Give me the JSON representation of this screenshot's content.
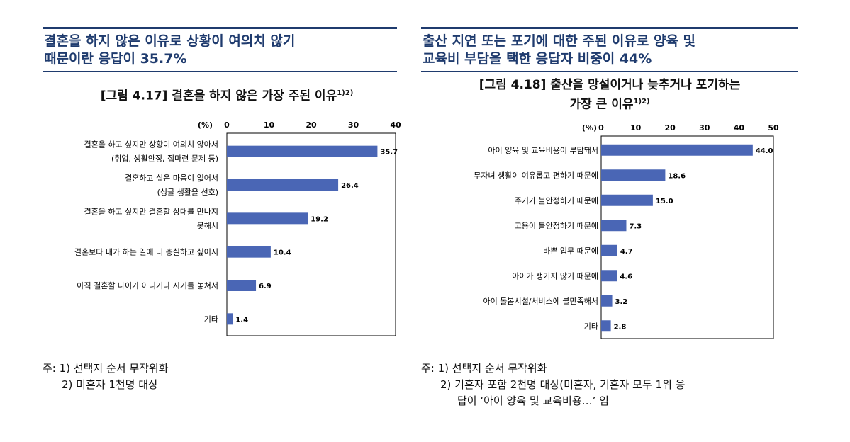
{
  "left": {
    "headline_line1": "결혼을 하지 않은 이유로 상황이 여의치 않기",
    "headline_line2": "때문이란 응답이 35.7%",
    "figure_title": "[그림 4.17] 결혼을 하지 않은 가장 주된 이유",
    "figure_title_sup": "1)2)",
    "notes": [
      "주: 1) 선택지 순서 무작위화",
      "2) 미혼자 1천명 대상"
    ]
  },
  "right": {
    "headline_line1": "출산 지연 또는 포기에 대한 주된 이유로 양육 및",
    "headline_line2": "교육비 부담을 택한 응답자 비중이 44%",
    "figure_title_line1": "[그림 4.18] 출산을 망설이거나 늦추거나 포기하는",
    "figure_title_line2": "가장 큰 이유",
    "figure_title_sup": "1)2)",
    "notes": [
      "주: 1) 선택지 순서 무작위화",
      "2) 기혼자 포함 2천명 대상(미혼자, 기혼자 모두 1위 응",
      "답이 ‘아이 양육 및 교육비용…’ 임"
    ]
  },
  "colors": {
    "bar": "#4a66b5",
    "title": "#1f3b6e"
  },
  "chart_data": [
    {
      "type": "bar",
      "orientation": "horizontal",
      "title": "[그림 4.17] 결혼을 하지 않은 가장 주된 이유",
      "unit_label": "(%)",
      "xlim": [
        0,
        40
      ],
      "ticks": [
        0,
        10,
        20,
        30,
        40
      ],
      "categories": [
        [
          "결혼을 하고 싶지만 상황이 여의치 않아서",
          "(취업, 생활안정, 집마련 문제 등)"
        ],
        [
          "결혼하고 싶은 마음이 없어서",
          "(싱글 생활을 선호)"
        ],
        [
          "결혼을 하고 싶지만 결혼할 상대를 만나지",
          "못해서"
        ],
        [
          "결혼보다 내가 하는 일에 더 충실하고 싶어서"
        ],
        [
          "아직 결혼할 나이가 아니거나 시기를 놓쳐서"
        ],
        [
          "기타"
        ]
      ],
      "values": [
        35.7,
        26.4,
        19.2,
        10.4,
        6.9,
        1.4
      ],
      "value_labels": [
        "35.7",
        "26.4",
        "19.2",
        "10.4",
        "6.9",
        "1.4"
      ]
    },
    {
      "type": "bar",
      "orientation": "horizontal",
      "title": "[그림 4.18] 출산을 망설이거나 늦추거나 포기하는 가장 큰 이유",
      "unit_label": "(%)",
      "xlim": [
        0,
        50
      ],
      "ticks": [
        0,
        10,
        20,
        30,
        40,
        50
      ],
      "categories": [
        [
          "아이 양육 및 교육비용이 부담돼서"
        ],
        [
          "무자녀 생활이 여유롭고 편하기 때문에"
        ],
        [
          "주거가 불안정하기 때문에"
        ],
        [
          "고용이 불안정하기 때문에"
        ],
        [
          "바쁜 업무 때문에"
        ],
        [
          "아이가 생기지 않기 때문에"
        ],
        [
          "아이 돌봄시설/서비스에 불만족해서"
        ],
        [
          "기타"
        ]
      ],
      "values": [
        44.0,
        18.6,
        15.0,
        7.3,
        4.7,
        4.6,
        3.2,
        2.8
      ],
      "value_labels": [
        "44.0",
        "18.6",
        "15.0",
        "7.3",
        "4.7",
        "4.6",
        "3.2",
        "2.8"
      ]
    }
  ]
}
